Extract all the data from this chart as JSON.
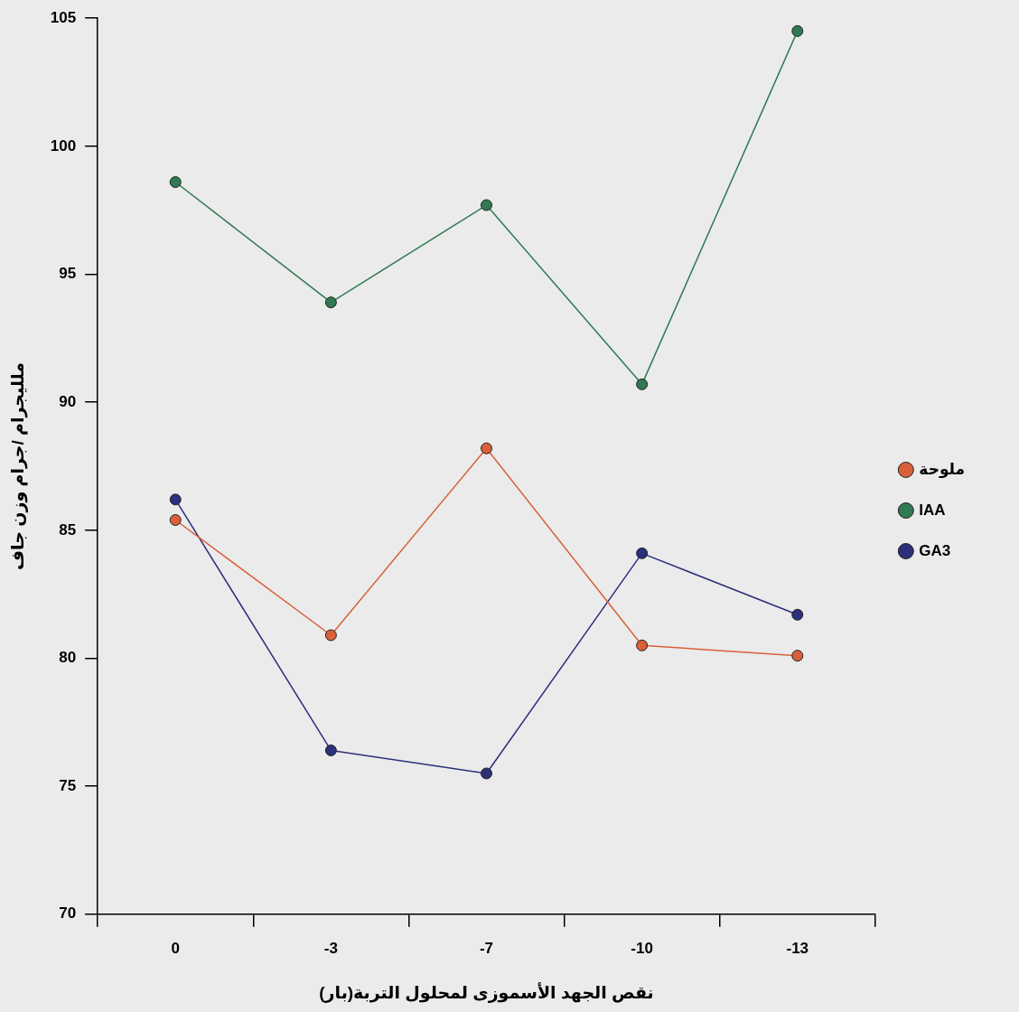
{
  "chart_data": {
    "type": "line",
    "xlabel": "نقص الجهد الأسموزى لمحلول التربة(بار)",
    "ylabel": "ملليجرام /جرام وزن جاف",
    "categories": [
      "0",
      "-3",
      "-7",
      "-10",
      "-13"
    ],
    "ylim": [
      70,
      105
    ],
    "yticks": [
      70,
      75,
      80,
      85,
      90,
      95,
      100,
      105
    ],
    "series": [
      {
        "name": "ملوحة",
        "color": "#d9603b",
        "values": [
          85.4,
          80.9,
          88.2,
          80.5,
          80.1
        ]
      },
      {
        "name": "IAA",
        "color": "#2f7a52",
        "values": [
          98.6,
          93.9,
          97.7,
          90.7,
          104.5
        ]
      },
      {
        "name": "GA3",
        "color": "#2c2f7a",
        "values": [
          86.2,
          76.4,
          75.5,
          84.1,
          81.7
        ]
      }
    ],
    "marker": "circle",
    "line_style": "solid",
    "grid": false,
    "legend": "right"
  }
}
